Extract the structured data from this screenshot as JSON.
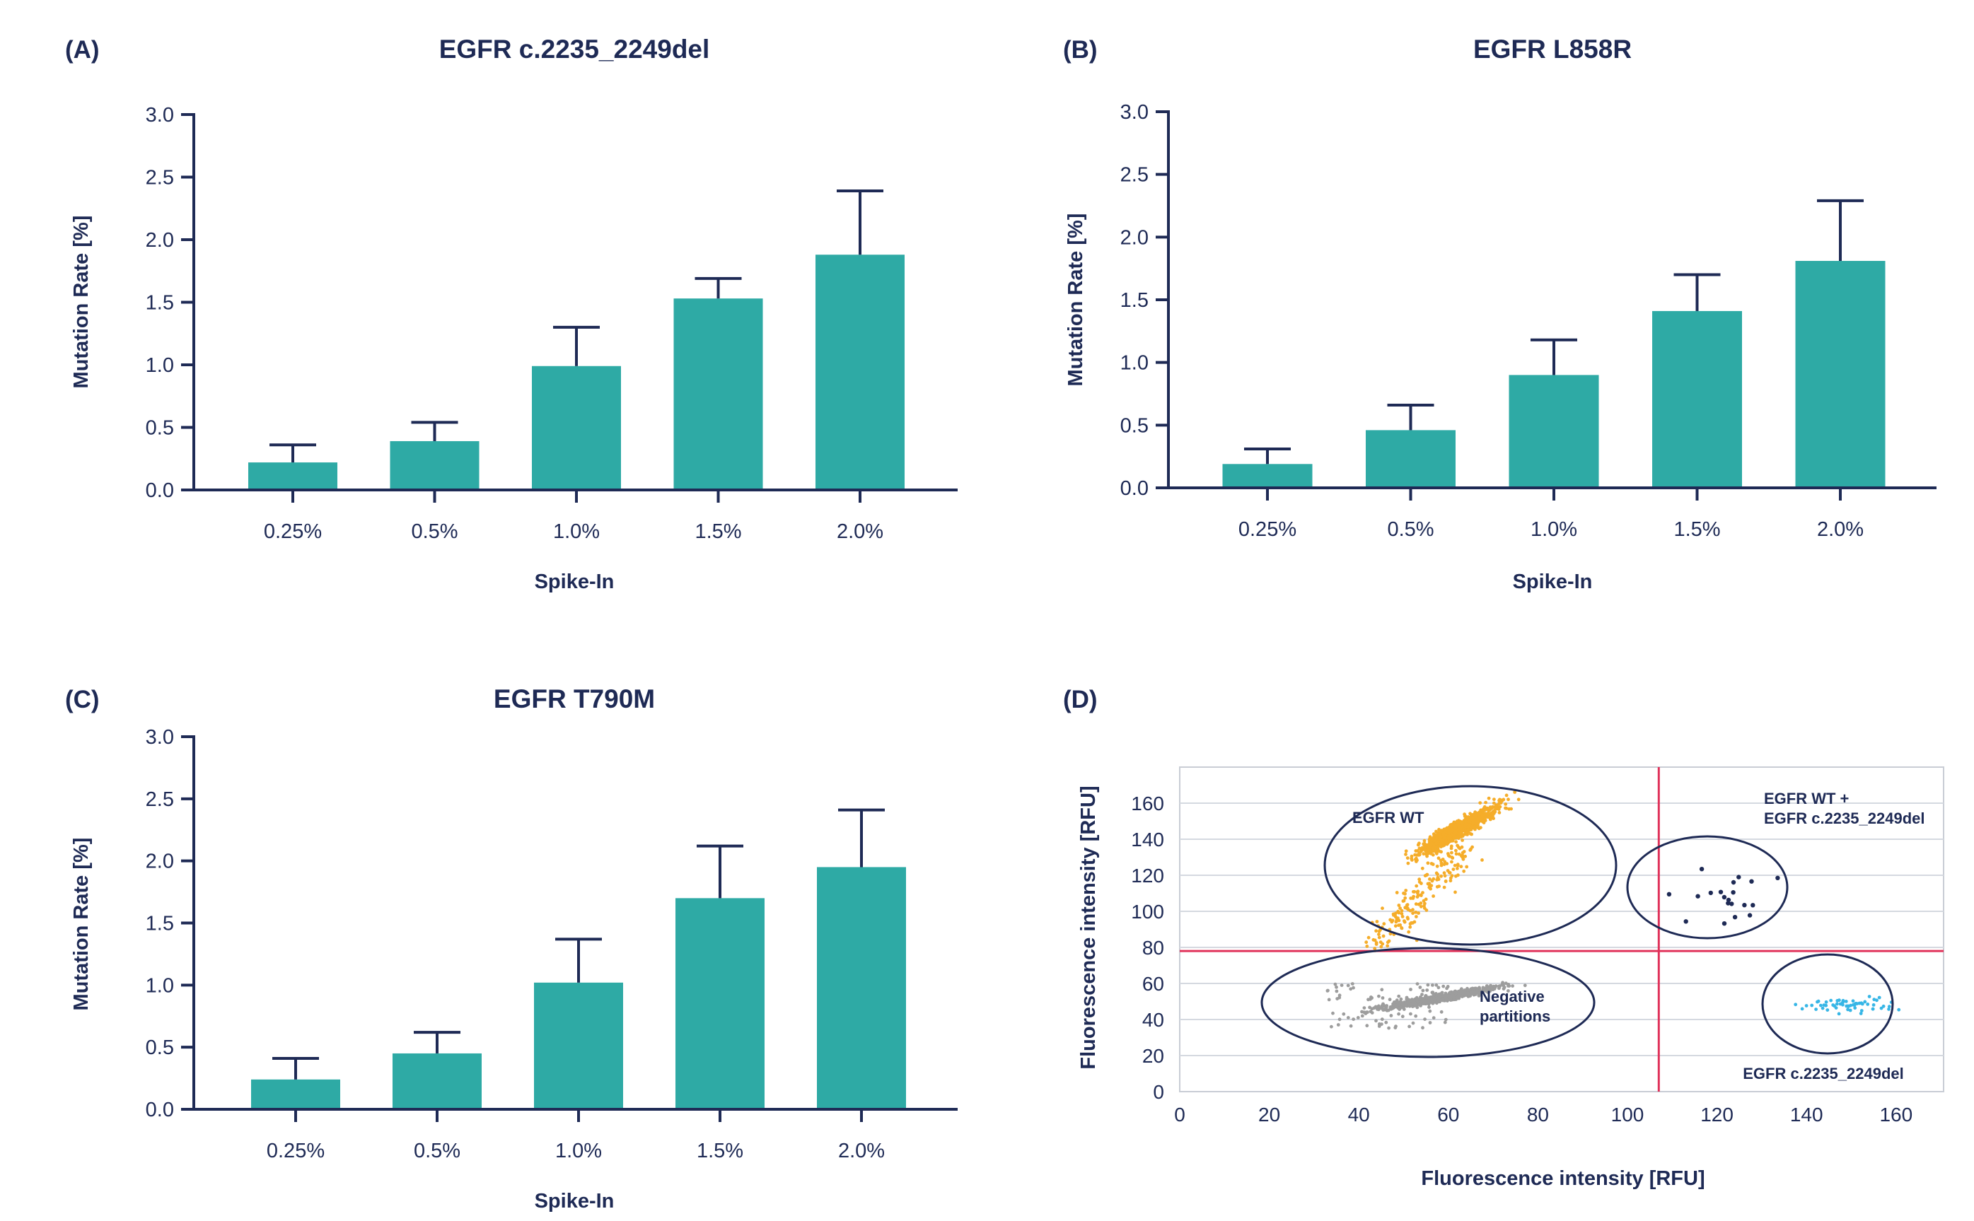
{
  "colors": {
    "bar": "#2eaaa5",
    "axis": "#1e2a55",
    "wt": "#f5ad2a",
    "negative": "#9d9d9d",
    "double": "#1e2a55",
    "del": "#37b6e6",
    "threshold": "#e0325a",
    "grid": "#d5d9e0"
  },
  "chart_data": [
    {
      "panel": "(A)",
      "type": "bar",
      "title": "EGFR c.2235_2249del",
      "xlabel": "Spike-In",
      "ylabel": "Mutation Rate [%]",
      "ylim": [
        0,
        3.0
      ],
      "yticks": [
        "0.0",
        "0.5",
        "1.0",
        "1.5",
        "2.0",
        "2.5",
        "3.0"
      ],
      "categories": [
        "0.25%",
        "0.5%",
        "1.0%",
        "1.5%",
        "2.0%"
      ],
      "values": [
        0.22,
        0.39,
        0.99,
        1.53,
        1.88
      ],
      "errors": [
        0.14,
        0.15,
        0.31,
        0.16,
        0.51
      ]
    },
    {
      "panel": "(B)",
      "type": "bar",
      "title": "EGFR L858R",
      "xlabel": "Spike-In",
      "ylabel": "Mutation Rate [%]",
      "ylim": [
        0,
        3.0
      ],
      "yticks": [
        "0.0",
        "0.5",
        "1.0",
        "1.5",
        "2.0",
        "2.5",
        "3.0"
      ],
      "categories": [
        "0.25%",
        "0.5%",
        "1.0%",
        "1.5%",
        "2.0%"
      ],
      "values": [
        0.19,
        0.46,
        0.9,
        1.41,
        1.81
      ],
      "errors": [
        0.12,
        0.2,
        0.28,
        0.29,
        0.48
      ]
    },
    {
      "panel": "(C)",
      "type": "bar",
      "title": "EGFR T790M",
      "xlabel": "Spike-In",
      "ylabel": "Mutation Rate [%]",
      "ylim": [
        0,
        3.0
      ],
      "yticks": [
        "0.0",
        "0.5",
        "1.0",
        "1.5",
        "2.0",
        "2.5",
        "3.0"
      ],
      "categories": [
        "0.25%",
        "0.5%",
        "1.0%",
        "1.5%",
        "2.0%"
      ],
      "values": [
        0.24,
        0.45,
        1.02,
        1.7,
        1.95
      ],
      "errors": [
        0.17,
        0.17,
        0.35,
        0.42,
        0.46
      ]
    },
    {
      "panel": "(D)",
      "type": "scatter",
      "xlabel": "Fluorescence intensity [RFU]",
      "ylabel": "Fluorescence intensity [RFU]",
      "xlim": [
        0,
        170
      ],
      "ylim": [
        0,
        175
      ],
      "xticks": [
        0,
        20,
        40,
        60,
        80,
        100,
        120,
        140,
        160
      ],
      "yticks": [
        0,
        20,
        40,
        60,
        80,
        100,
        120,
        140,
        160
      ],
      "threshold_x": 107,
      "threshold_y": 78,
      "clusters": [
        {
          "name": "EGFR WT",
          "label_lines": [
            "EGFR WT"
          ],
          "color_key": "wt",
          "center": [
            62,
            145
          ],
          "count": 1200,
          "spread": [
            4.0,
            5.0
          ]
        },
        {
          "name": "Negative partitions",
          "label_lines": [
            "Negative",
            "partitions"
          ],
          "color_key": "negative",
          "center": [
            58,
            52
          ],
          "count": 900,
          "spread": [
            6.0,
            3.0
          ]
        },
        {
          "name": "EGFR WT + EGFR c.2235_2249del",
          "label_lines": [
            "EGFR WT +",
            "EGFR c.2235_2249del"
          ],
          "color_key": "double",
          "center": [
            124,
            108
          ],
          "count": 20,
          "spread": [
            5.0,
            8.0
          ]
        },
        {
          "name": "EGFR c.2235_2249del",
          "label_lines": [
            "EGFR c.2235_2249del"
          ],
          "color_key": "del",
          "center": [
            149,
            48
          ],
          "count": 60,
          "spread": [
            6.0,
            2.0
          ]
        }
      ]
    }
  ]
}
